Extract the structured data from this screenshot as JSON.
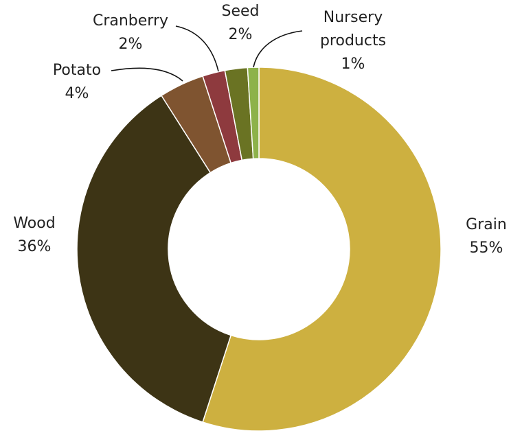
{
  "chart_data": {
    "type": "pie",
    "donut": true,
    "categories": [
      "Grain",
      "Wood",
      "Potato",
      "Cranberry",
      "Seed",
      "Nursery products"
    ],
    "values": [
      55,
      36,
      4,
      2,
      2,
      1
    ],
    "value_labels": [
      "55%",
      "36%",
      "4%",
      "2%",
      "2%",
      "1%"
    ],
    "colors": [
      "#cdb040",
      "#3d3415",
      "#7f5430",
      "#8e3a3e",
      "#6a7323",
      "#8db24a"
    ]
  }
}
